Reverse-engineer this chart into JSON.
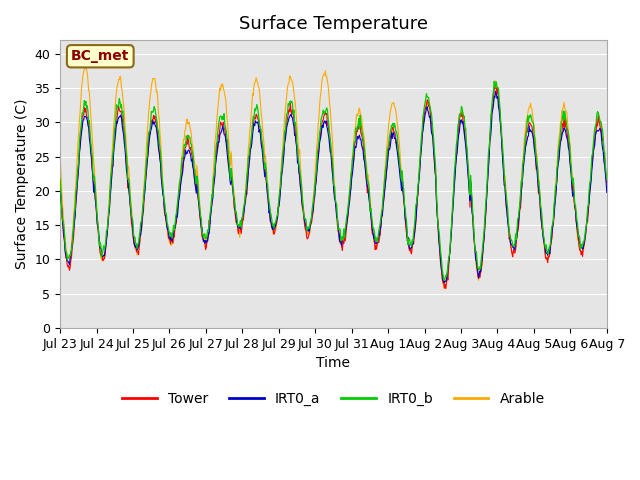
{
  "title": "Surface Temperature",
  "ylabel": "Surface Temperature (C)",
  "xlabel": "Time",
  "annotation": "BC_met",
  "ylim": [
    0,
    42
  ],
  "yticks": [
    0,
    5,
    10,
    15,
    20,
    25,
    30,
    35,
    40
  ],
  "series_colors": {
    "Tower": "#ff0000",
    "IRT0_a": "#0000cc",
    "IRT0_b": "#00cc00",
    "Arable": "#ffaa00"
  },
  "background_color": "#e5e5e5",
  "fig_background": "#ffffff",
  "x_tick_labels": [
    "Jul 23",
    "Jul 24",
    "Jul 25",
    "Jul 26",
    "Jul 27",
    "Jul 28",
    "Jul 29",
    "Jul 30",
    "Jul 31",
    "Aug 1",
    "Aug 2",
    "Aug 3",
    "Aug 4",
    "Aug 5",
    "Aug 6",
    "Aug 7"
  ],
  "n_days": 16,
  "points_per_day": 48,
  "title_fontsize": 13,
  "label_fontsize": 10,
  "tick_fontsize": 9,
  "legend_fontsize": 10,
  "base_mins_tower": [
    9,
    10,
    11,
    12.5,
    12,
    14,
    14,
    13.5,
    12,
    12,
    11,
    6,
    7.5,
    11,
    10,
    11
  ],
  "base_maxs_tower": [
    32,
    32,
    31,
    27,
    30,
    31,
    32,
    31,
    29,
    29,
    33,
    31,
    35,
    30,
    30,
    30
  ],
  "base_mins_arable": [
    10,
    10,
    11,
    12,
    12,
    14,
    14,
    13.5,
    12,
    12,
    11.5,
    6,
    7.5,
    11,
    10,
    11
  ],
  "base_maxs_arable": [
    38,
    36.5,
    36.5,
    30,
    35.5,
    36,
    36.5,
    37.5,
    31.5,
    33,
    33,
    31.5,
    35.5,
    32.5,
    32.5,
    30.5
  ]
}
